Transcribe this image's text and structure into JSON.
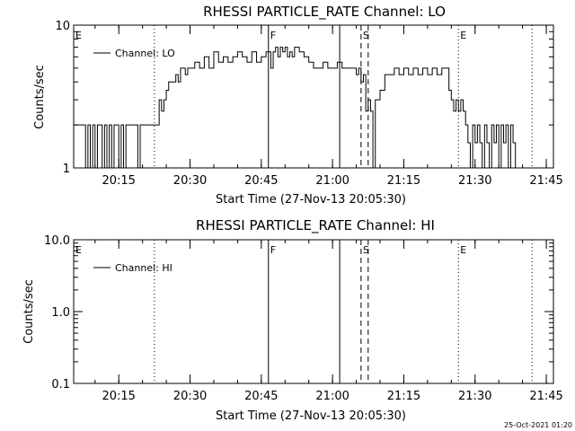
{
  "stamp": "25-Oct-2021 01:20",
  "chart_data": [
    {
      "type": "line",
      "title": "RHESSI PARTICLE_RATE Channel: LO",
      "xlabel": "Start Time (27-Nov-13 20:05:30)",
      "ylabel": "Counts/sec",
      "yscale": "log",
      "ylim": [
        1,
        10
      ],
      "xlim": [
        "20:05:30",
        "21:46:30"
      ],
      "ytick_labels": [
        "1",
        "10"
      ],
      "xtick_labels": [
        "20:15",
        "20:30",
        "20:45",
        "21:00",
        "21:15",
        "21:30",
        "21:45"
      ],
      "legend": "top-left",
      "series": [
        {
          "name": "Channel: LO",
          "x": [
            "20:05:30",
            "20:07:30",
            "20:08:00",
            "20:08:30",
            "20:09:00",
            "20:09:30",
            "20:10:00",
            "20:10:30",
            "20:11:00",
            "20:11:30",
            "20:12:00",
            "20:12:30",
            "20:13:00",
            "20:13:30",
            "20:14:00",
            "20:14:30",
            "20:15:00",
            "20:15:30",
            "20:16:00",
            "20:16:30",
            "20:17:00",
            "20:17:30",
            "20:18:00",
            "20:18:30",
            "20:19:00",
            "20:19:30",
            "20:20:00",
            "20:20:30",
            "20:21:00",
            "20:22:00",
            "20:22:30",
            "20:23:00",
            "20:23:30",
            "20:24:00",
            "20:24:30",
            "20:25:00",
            "20:25:30",
            "20:26:00",
            "20:27:00",
            "20:27:30",
            "20:28:00",
            "20:28:30",
            "20:29:00",
            "20:29:30",
            "20:30:00",
            "20:31:00",
            "20:32:00",
            "20:33:00",
            "20:34:00",
            "20:35:00",
            "20:36:00",
            "20:37:00",
            "20:38:00",
            "20:39:00",
            "20:40:00",
            "20:41:00",
            "20:42:00",
            "20:43:00",
            "20:44:00",
            "20:45:00",
            "20:46:00",
            "20:47:00",
            "20:47:30",
            "20:48:00",
            "20:48:30",
            "20:49:00",
            "20:49:30",
            "20:50:00",
            "20:50:30",
            "20:51:00",
            "20:51:30",
            "20:52:00",
            "20:53:00",
            "20:54:00",
            "20:55:00",
            "20:56:00",
            "20:57:00",
            "20:58:00",
            "20:59:00",
            "21:00:00",
            "21:01:00",
            "21:02:00",
            "21:03:00",
            "21:04:00",
            "21:05:00",
            "21:05:30",
            "21:06:00",
            "21:06:30",
            "21:07:00",
            "21:07:30",
            "21:08:00",
            "21:08:30",
            "21:09:00",
            "21:10:00",
            "21:11:00",
            "21:12:00",
            "21:13:00",
            "21:14:00",
            "21:15:00",
            "21:16:00",
            "21:17:00",
            "21:18:00",
            "21:19:00",
            "21:20:00",
            "21:21:00",
            "21:22:00",
            "21:23:00",
            "21:23:30",
            "21:24:00",
            "21:24:30",
            "21:25:00",
            "21:25:30",
            "21:26:00",
            "21:26:30",
            "21:27:00",
            "21:27:30",
            "21:28:00",
            "21:28:30",
            "21:29:00",
            "21:29:30",
            "21:30:00",
            "21:30:30",
            "21:31:00",
            "21:31:30",
            "21:32:00",
            "21:32:30",
            "21:33:00",
            "21:33:30",
            "21:34:00",
            "21:34:30",
            "21:35:00",
            "21:35:30",
            "21:36:00",
            "21:36:30",
            "21:37:00",
            "21:37:30",
            "21:38:00",
            "21:38:30",
            "21:39:00",
            "21:39:30",
            "21:40:00"
          ],
          "y": [
            2,
            2,
            1,
            2,
            1,
            2,
            1,
            2,
            2,
            1,
            2,
            1,
            2,
            1,
            2,
            2,
            1,
            2,
            1,
            2,
            2,
            2,
            2,
            2,
            1,
            2,
            2,
            2,
            2,
            2,
            2,
            2,
            3,
            2.5,
            3,
            3.5,
            4,
            4,
            4.5,
            4,
            5,
            5,
            4.5,
            5,
            5,
            5.5,
            5,
            6,
            5,
            6.5,
            5.5,
            6,
            5.5,
            6,
            6.5,
            6,
            5.5,
            6.5,
            5.5,
            6,
            6.5,
            5,
            6.5,
            7,
            6,
            7,
            6.5,
            7,
            6,
            6.5,
            6,
            7,
            6.5,
            6,
            5.5,
            5,
            5,
            5.5,
            5,
            5,
            5.5,
            5,
            5,
            5,
            4.5,
            5,
            4,
            4.5,
            2.5,
            3,
            2.5,
            1,
            3,
            3.5,
            4.5,
            4.5,
            5,
            4.5,
            5,
            4.5,
            5,
            4.5,
            5,
            4.5,
            5,
            4.5,
            5,
            5,
            5,
            3.5,
            3,
            2.5,
            3,
            2.5,
            3,
            2.5,
            2,
            1.5,
            1,
            2,
            1.5,
            2,
            1.5,
            1,
            2,
            1.5,
            1,
            2,
            1.5,
            2,
            1,
            2,
            1.5,
            2,
            1,
            2,
            1.5,
            1,
            1,
            1,
            1
          ]
        }
      ]
    },
    {
      "type": "line",
      "title": "RHESSI PARTICLE_RATE Channel: HI",
      "xlabel": "Start Time (27-Nov-13 20:05:30)",
      "ylabel": "Counts/sec",
      "yscale": "log",
      "ylim": [
        0.1,
        10.0
      ],
      "xlim": [
        "20:05:30",
        "21:46:30"
      ],
      "ytick_labels": [
        "0.1",
        "1.0",
        "10.0"
      ],
      "xtick_labels": [
        "20:15",
        "20:30",
        "20:45",
        "21:00",
        "21:15",
        "21:30",
        "21:45"
      ],
      "legend": "top-left",
      "series": [
        {
          "name": "Channel: HI",
          "x": [],
          "y": []
        }
      ]
    }
  ],
  "markers": [
    {
      "label": "E",
      "time": "20:05:30",
      "style": "dotted"
    },
    {
      "label": "",
      "time": "20:22:30",
      "style": "dotted"
    },
    {
      "label": "F",
      "time": "20:46:30",
      "style": "solid"
    },
    {
      "label": "",
      "time": "21:01:30",
      "style": "solid"
    },
    {
      "label": "S",
      "time": "21:06:00",
      "style": "dashed"
    },
    {
      "label": "",
      "time": "21:07:30",
      "style": "dashed"
    },
    {
      "label": "E",
      "time": "21:26:30",
      "style": "dotted"
    },
    {
      "label": "",
      "time": "21:42:00",
      "style": "dotted"
    }
  ]
}
